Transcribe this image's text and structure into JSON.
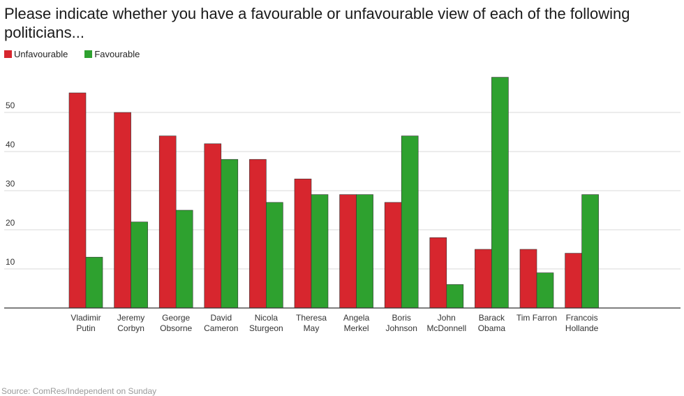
{
  "chart_data": {
    "type": "bar",
    "title": "Please indicate whether you have a favourable or unfavourable view of each of the following politicians...",
    "xlabel": "",
    "ylabel": "",
    "ylim": [
      0,
      60
    ],
    "yticks": [
      10,
      20,
      30,
      40,
      50
    ],
    "grid": true,
    "legend_position": "top-left",
    "categories": [
      [
        "Vladimir",
        "Putin"
      ],
      [
        "Jeremy",
        "Corbyn"
      ],
      [
        "George",
        "Obsorne"
      ],
      [
        "David",
        "Cameron"
      ],
      [
        "Nicola",
        "Sturgeon"
      ],
      [
        "Theresa",
        "May"
      ],
      [
        "Angela",
        "Merkel"
      ],
      [
        "Boris",
        "Johnson"
      ],
      [
        "John",
        "McDonnell"
      ],
      [
        "Barack",
        "Obama"
      ],
      [
        "Tim Farron"
      ],
      [
        "Francois",
        "Hollande"
      ]
    ],
    "series": [
      {
        "name": "Unfavourable",
        "color": "#d7262e",
        "values": [
          55,
          50,
          44,
          42,
          38,
          33,
          29,
          27,
          18,
          15,
          15,
          14
        ]
      },
      {
        "name": "Favourable",
        "color": "#2ea12f",
        "values": [
          13,
          22,
          25,
          38,
          27,
          29,
          29,
          44,
          6,
          59,
          9,
          29
        ]
      }
    ]
  },
  "source": "Source: ComRes/Independent on Sunday"
}
